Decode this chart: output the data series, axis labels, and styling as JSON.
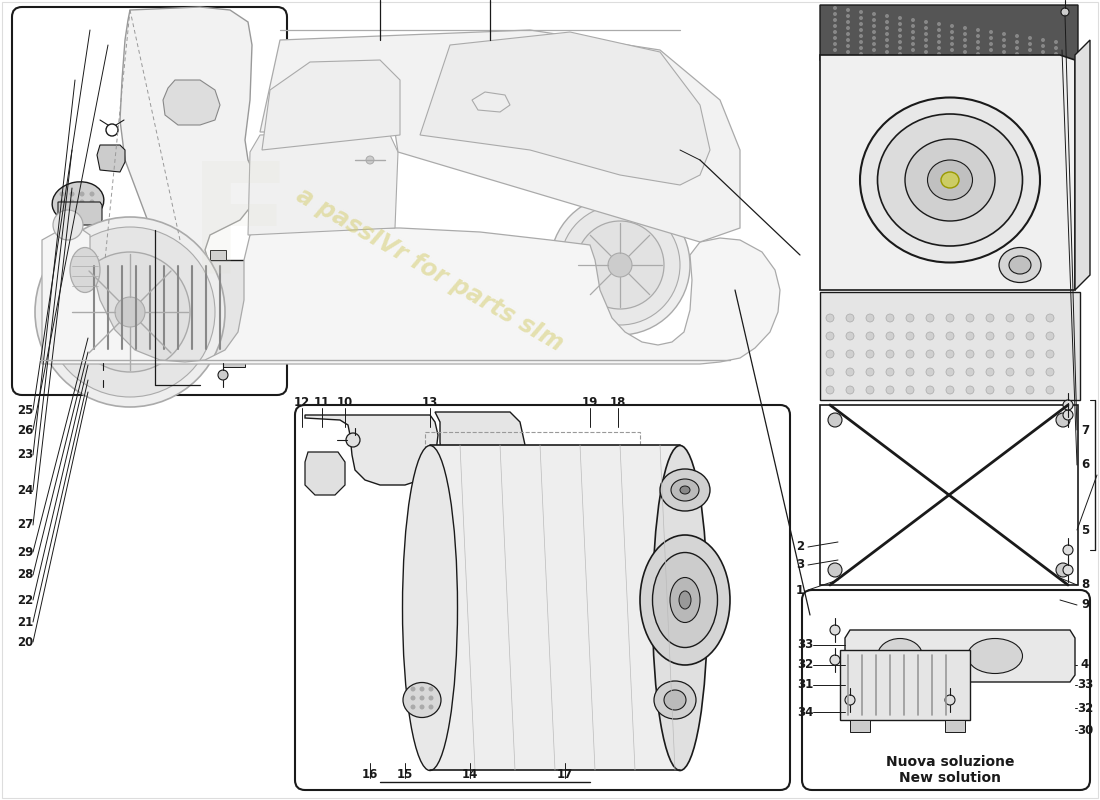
{
  "bg_color": "#ffffff",
  "border_color": "#1a1a1a",
  "line_color": "#1a1a1a",
  "thin_line": "#333333",
  "gray_line": "#888888",
  "light_gray": "#cccccc",
  "mid_gray": "#aaaaaa",
  "dark_gray": "#555555",
  "part_color": "#e8e8e8",
  "watermark_color": "#d4cc6a",
  "new_solution_text": [
    "Nuova soluzione",
    "New solution"
  ],
  "left_parts": [
    [
      "25",
      25,
      390
    ],
    [
      "26",
      25,
      370
    ],
    [
      "23",
      25,
      345
    ],
    [
      "24",
      25,
      310
    ],
    [
      "27",
      25,
      275
    ],
    [
      "29",
      25,
      248
    ],
    [
      "28",
      25,
      225
    ],
    [
      "22",
      25,
      200
    ],
    [
      "21",
      25,
      178
    ],
    [
      "20",
      25,
      158
    ]
  ],
  "center_top_parts": [
    [
      "12",
      302,
      398
    ],
    [
      "11",
      322,
      398
    ],
    [
      "10",
      345,
      398
    ],
    [
      "13",
      430,
      398
    ],
    [
      "19",
      590,
      398
    ],
    [
      "18",
      618,
      398
    ]
  ],
  "center_bot_parts": [
    [
      "16",
      370,
      7
    ],
    [
      "15",
      405,
      7
    ],
    [
      "14",
      470,
      7
    ],
    [
      "17",
      565,
      7
    ]
  ],
  "right_parts": [
    [
      "7",
      1085,
      370
    ],
    [
      "6",
      1085,
      335
    ],
    [
      "5",
      1085,
      270
    ],
    [
      "2",
      800,
      253
    ],
    [
      "3",
      800,
      235
    ],
    [
      "1",
      800,
      210
    ],
    [
      "8",
      1085,
      215
    ],
    [
      "9",
      1085,
      195
    ]
  ],
  "ns_left_parts": [
    [
      "33",
      805,
      155
    ],
    [
      "32",
      805,
      135
    ],
    [
      "31",
      805,
      115
    ],
    [
      "34",
      805,
      88
    ]
  ],
  "ns_right_parts": [
    [
      "4",
      1085,
      135
    ],
    [
      "33",
      1085,
      115
    ],
    [
      "32",
      1085,
      92
    ],
    [
      "30",
      1085,
      70
    ]
  ]
}
